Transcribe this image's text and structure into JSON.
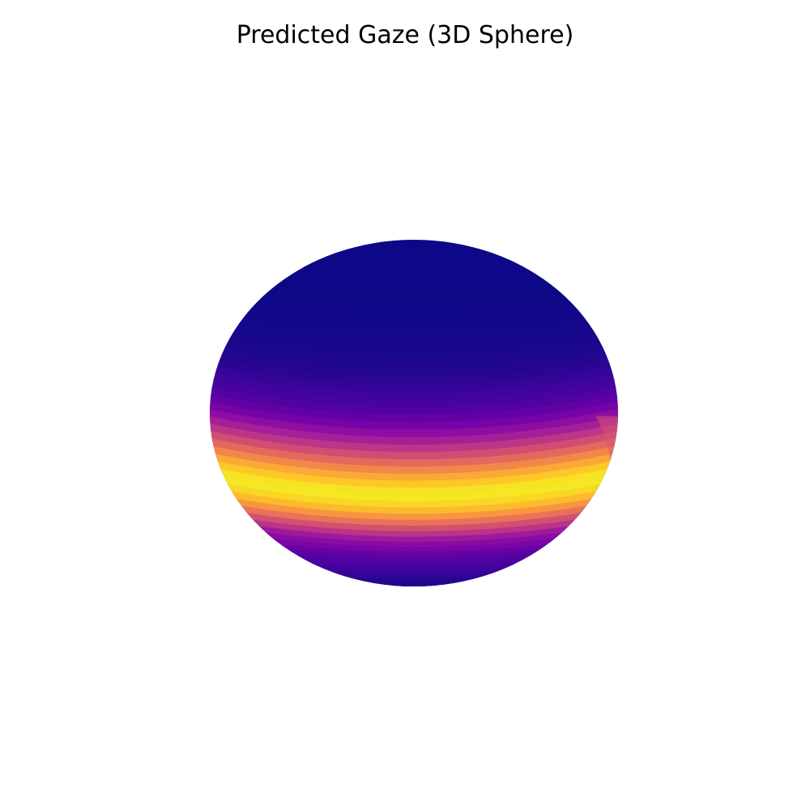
{
  "chart_data": {
    "type": "heatmap",
    "subtype": "3d-sphere-surface",
    "title": "Predicted Gaze (3D Sphere)",
    "axes_visible": false,
    "grid": false,
    "legend": "none",
    "colormap": "plasma",
    "colormap_stops": [
      "#0d0887",
      "#47039f",
      "#7301a8",
      "#9c179e",
      "#bd3786",
      "#d8576b",
      "#ed7953",
      "#fb9f3a",
      "#fdca26",
      "#f0f921"
    ],
    "latitude_bands": [
      {
        "lat_deg": 80,
        "value": 0.0
      },
      {
        "lat_deg": 70,
        "value": 0.0
      },
      {
        "lat_deg": 60,
        "value": 0.0
      },
      {
        "lat_deg": 50,
        "value": 0.01
      },
      {
        "lat_deg": 40,
        "value": 0.02
      },
      {
        "lat_deg": 30,
        "value": 0.05
      },
      {
        "lat_deg": 20,
        "value": 0.12
      },
      {
        "lat_deg": 15,
        "value": 0.2
      },
      {
        "lat_deg": 10,
        "value": 0.32
      },
      {
        "lat_deg": 5,
        "value": 0.48
      },
      {
        "lat_deg": 0,
        "value": 0.66
      },
      {
        "lat_deg": -5,
        "value": 0.85
      },
      {
        "lat_deg": -10,
        "value": 0.98
      },
      {
        "lat_deg": -15,
        "value": 0.9
      },
      {
        "lat_deg": -20,
        "value": 0.7
      },
      {
        "lat_deg": -25,
        "value": 0.48
      },
      {
        "lat_deg": -30,
        "value": 0.3
      },
      {
        "lat_deg": -40,
        "value": 0.14
      },
      {
        "lat_deg": -50,
        "value": 0.08
      },
      {
        "lat_deg": -60,
        "value": 0.05
      },
      {
        "lat_deg": -70,
        "value": 0.04
      },
      {
        "lat_deg": -80,
        "value": 0.03
      }
    ]
  }
}
